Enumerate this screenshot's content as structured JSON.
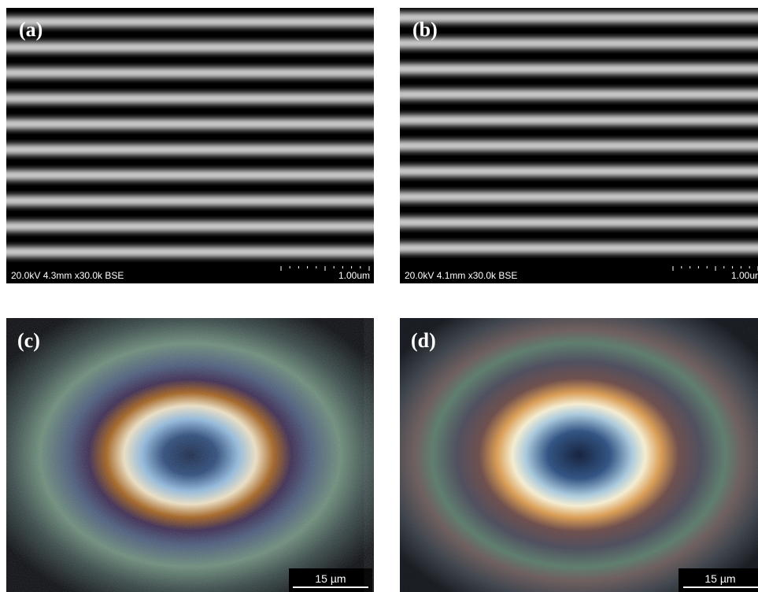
{
  "panels": [
    {
      "label": "(a)",
      "info": "20.0kV 4.3mm x30.0k BSE",
      "scale": "1.00um"
    },
    {
      "label": "(b)",
      "info": "20.0kV 4.1mm x30.0k BSE",
      "scale": "1.00ur"
    },
    {
      "label": "(c)",
      "scale": "15 µm"
    },
    {
      "label": "(d)",
      "scale": "15 µm"
    }
  ]
}
